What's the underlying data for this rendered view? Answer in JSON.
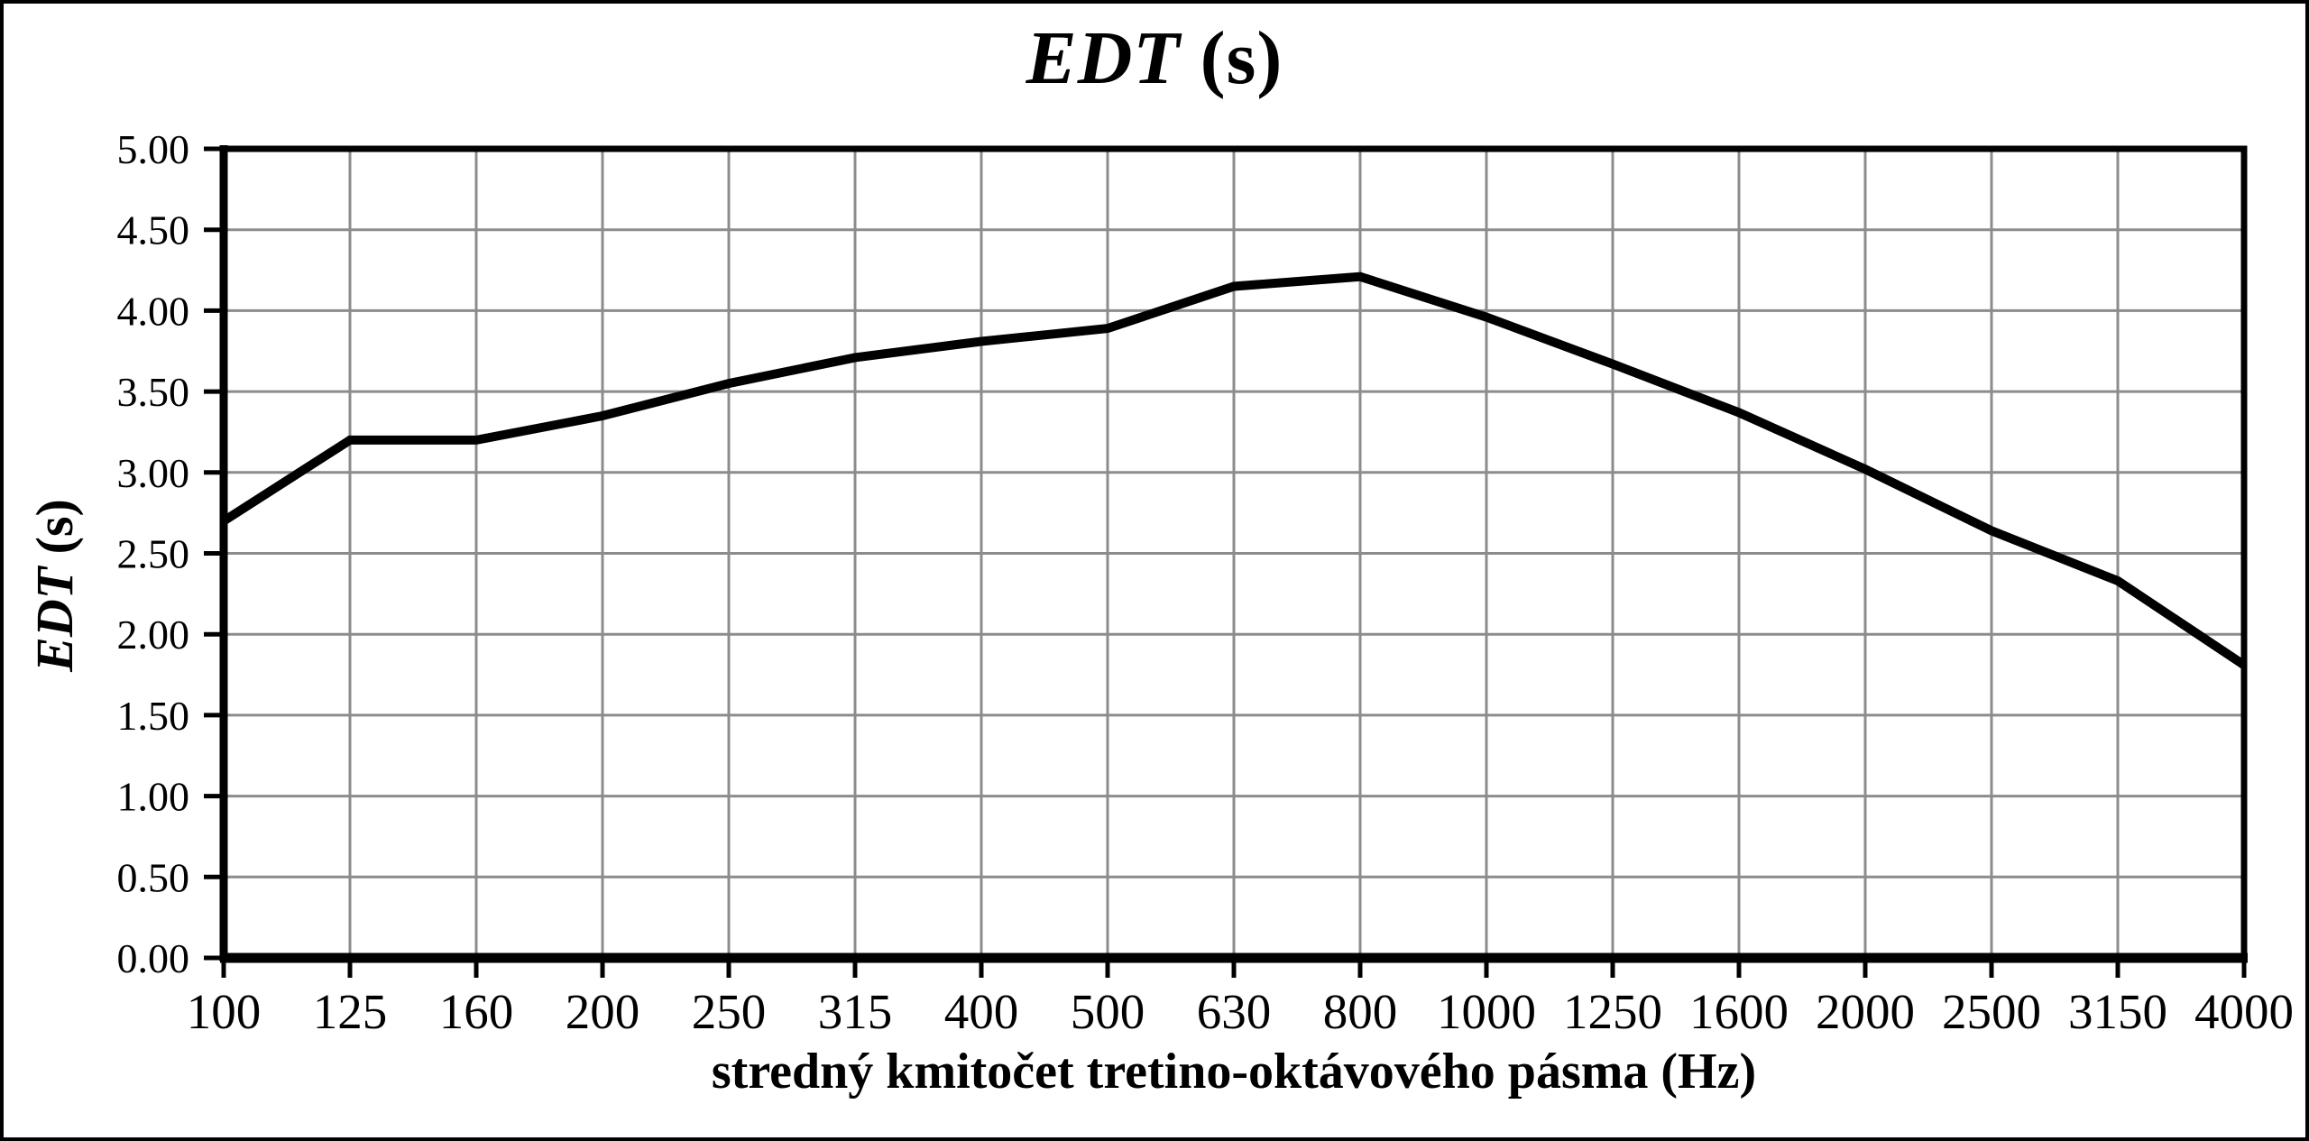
{
  "chart_data": {
    "type": "line",
    "title": "EDT (s)",
    "title_main": "EDT",
    "title_unit": "(s)",
    "ylabel": "EDT (s)",
    "ylabel_main": "EDT",
    "ylabel_unit": "(s)",
    "xlabel": "stredný kmitočet tretino-oktávového pásma (Hz)",
    "categories": [
      "100",
      "125",
      "160",
      "200",
      "250",
      "315",
      "400",
      "500",
      "630",
      "800",
      "1000",
      "1250",
      "1600",
      "2000",
      "2500",
      "3150",
      "4000"
    ],
    "values": [
      2.7,
      3.2,
      3.2,
      3.35,
      3.55,
      3.71,
      3.81,
      3.89,
      4.15,
      4.21,
      3.96,
      3.67,
      3.37,
      3.02,
      2.64,
      2.33,
      1.81
    ],
    "series_name": "EDT",
    "ylim": [
      0,
      5
    ],
    "ytick_step": 0.5,
    "ytick_labels": [
      "0.00",
      "0.50",
      "1.00",
      "1.50",
      "2.00",
      "2.50",
      "3.00",
      "3.50",
      "4.00",
      "4.50",
      "5.00"
    ],
    "grid": true,
    "legend_position": "none",
    "line_color": "#000000",
    "grid_color": "#8c8c8c",
    "axis_color": "#000000",
    "background": "#ffffff"
  }
}
